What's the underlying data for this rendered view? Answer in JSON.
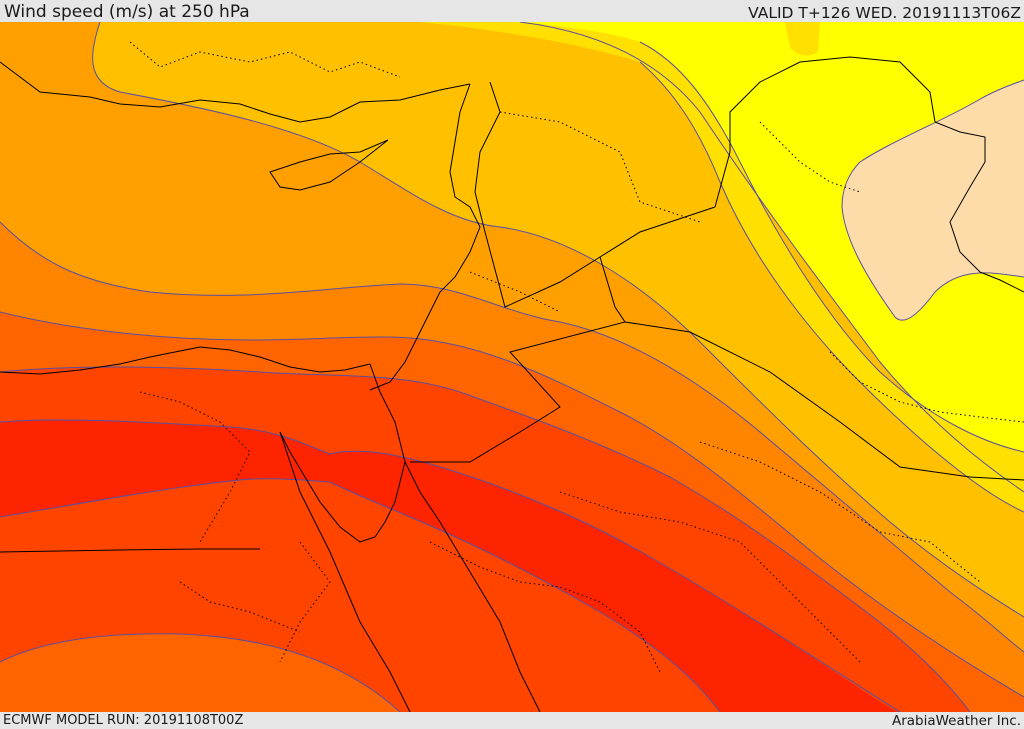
{
  "header": {
    "title": "Wind speed (m/s) at 250 hPa",
    "valid": "VALID T+126 WED. 20191113T06Z"
  },
  "footer": {
    "model_run": "ECMWF MODEL RUN: 20191108T00Z",
    "credit": "ArabiaWeather Inc."
  },
  "map": {
    "variable": "wind speed",
    "level": "250 hPa",
    "units": "m/s",
    "colors": {
      "band_lightest": "#fddcaa",
      "band_1": "#ffff00",
      "band_2": "#ffe000",
      "band_3": "#ffc000",
      "band_4": "#ffa000",
      "band_5": "#ff8400",
      "band_6": "#ff6400",
      "band_7": "#ff4400",
      "band_8": "#ff2400",
      "contour_line": "#5a4fa0",
      "border_line": "#000000"
    }
  }
}
